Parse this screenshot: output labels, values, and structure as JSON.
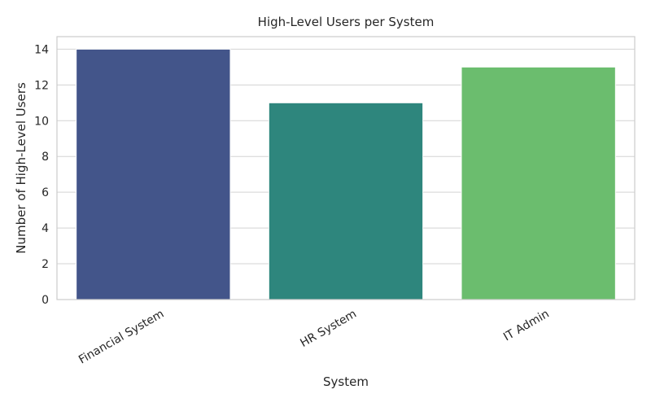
{
  "chart_data": {
    "type": "bar",
    "title": "High-Level Users per System",
    "xlabel": "System",
    "ylabel": "Number of High-Level Users",
    "categories": [
      "Financial System",
      "HR System",
      "IT Admin"
    ],
    "values": [
      14,
      11,
      13
    ],
    "ylim": [
      0,
      14.7
    ],
    "yticks": [
      0,
      2,
      4,
      6,
      8,
      10,
      12,
      14
    ],
    "colors": [
      "#43558a",
      "#2e867d",
      "#6bbd6e"
    ],
    "grid": true,
    "legend": "none"
  }
}
